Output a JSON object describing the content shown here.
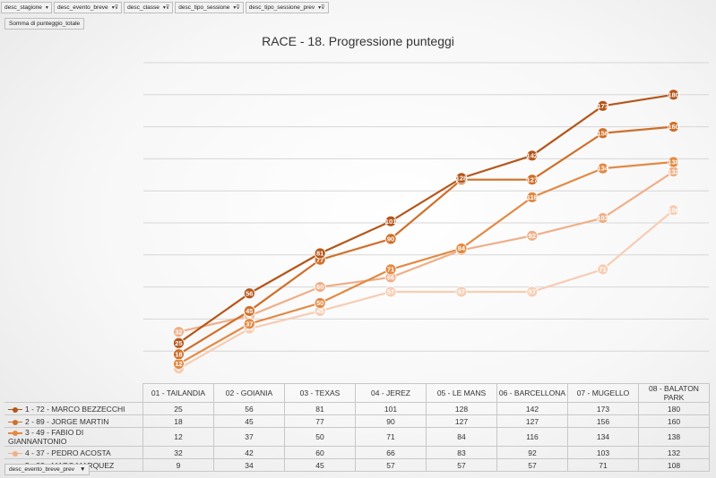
{
  "filters": [
    {
      "label": "desc_stagione",
      "icon": "dropdown-icon"
    },
    {
      "label": "desc_evento_breve",
      "icon": "filter-icon"
    },
    {
      "label": "desc_classe",
      "icon": "filter-icon"
    },
    {
      "label": "desc_tipo_sessione",
      "icon": "filter-icon"
    },
    {
      "label": "desc_tipo_sessione_prev",
      "icon": "filter-icon"
    }
  ],
  "value_field": "Somma di punteggio_totale",
  "bottom_field": "desc_evento_breve_prev",
  "colors": {
    "grid": "#d6d6d6"
  },
  "chart_data": {
    "type": "line",
    "title": "RACE - 18. Progressione punteggi",
    "categories": [
      "01 - TAILANDIA",
      "02 - GOIANIA",
      "03 - TEXAS",
      "04 - JEREZ",
      "05 - LE MANS",
      "06 - BARCELLONA",
      "07 - MUGELLO",
      "08 - BALATON PARK"
    ],
    "ylim": [
      0,
      200
    ],
    "grid": true,
    "data_labels": true,
    "legend": "data-table",
    "series": [
      {
        "name": "1 - 72 - MARCO BEZZECCHI",
        "color": "#b5561a",
        "values": [
          25,
          56,
          81,
          101,
          128,
          142,
          173,
          180
        ]
      },
      {
        "name": "2 - 89 - JORGE MARTIN",
        "color": "#d06f2a",
        "values": [
          18,
          45,
          77,
          90,
          127,
          127,
          156,
          160
        ]
      },
      {
        "name": "3 - 49 - FABIO DI GIANNANTONIO",
        "color": "#e28a45",
        "values": [
          12,
          37,
          50,
          71,
          84,
          116,
          134,
          138
        ]
      },
      {
        "name": "4 - 37 - PEDRO ACOSTA",
        "color": "#efaf88",
        "values": [
          32,
          42,
          60,
          66,
          83,
          92,
          103,
          132
        ]
      },
      {
        "name": "5 - 93 - MARC MARQUEZ",
        "color": "#f6cdb4",
        "values": [
          9,
          34,
          45,
          57,
          57,
          57,
          71,
          108
        ]
      }
    ]
  }
}
